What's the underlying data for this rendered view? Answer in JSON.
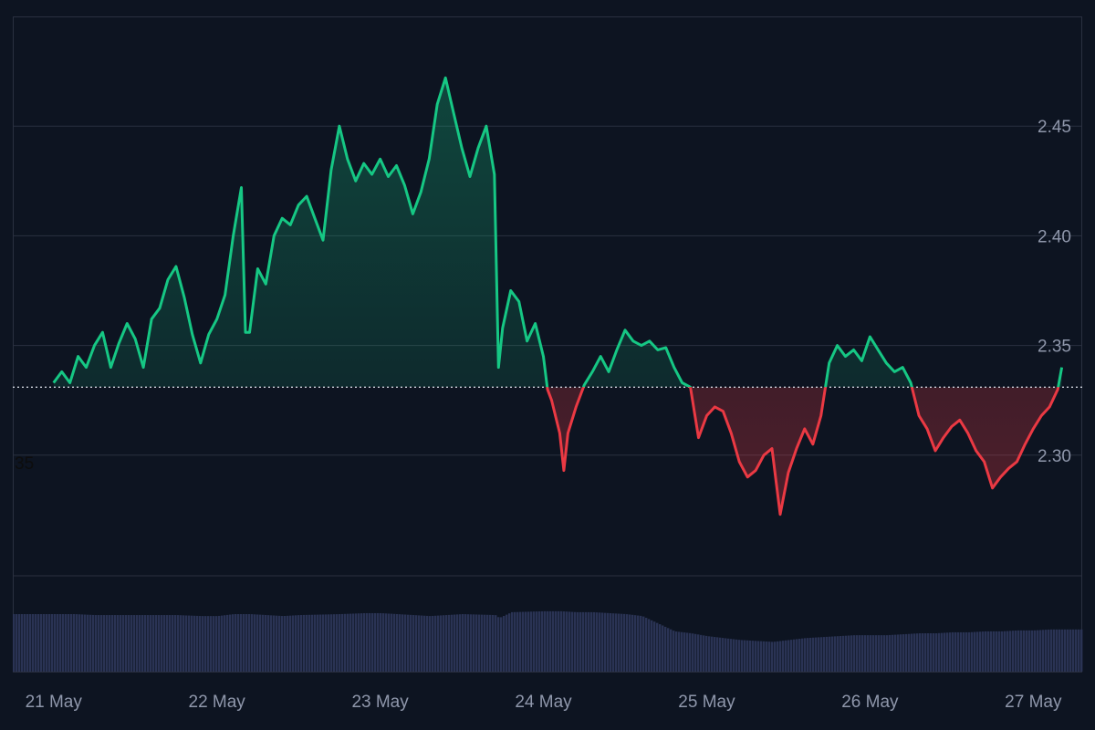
{
  "chart_data": {
    "type": "line",
    "title": "",
    "xlabel": "",
    "ylabel": "",
    "x_tick_labels": [
      "21 May",
      "22 May",
      "23 May",
      "24 May",
      "25 May",
      "26 May",
      "27 May"
    ],
    "y_tick_labels": [
      "2.30",
      "2.35",
      "2.40",
      "2.45"
    ],
    "y_ticks": [
      2.3,
      2.35,
      2.4,
      2.45
    ],
    "ylim": [
      2.245,
      2.5
    ],
    "baseline": 2.331,
    "baseline_label": "35",
    "grid": true,
    "colors": {
      "background": "#0d1421",
      "grid": "#2a3040",
      "above": "#16c784",
      "below": "#ea3943",
      "volume": "#2a3354",
      "baseline": "#cfd3dc"
    },
    "price_series": [
      [
        0.0,
        2.333
      ],
      [
        0.1,
        2.338
      ],
      [
        0.2,
        2.333
      ],
      [
        0.3,
        2.345
      ],
      [
        0.4,
        2.34
      ],
      [
        0.5,
        2.35
      ],
      [
        0.6,
        2.356
      ],
      [
        0.7,
        2.34
      ],
      [
        0.8,
        2.351
      ],
      [
        0.9,
        2.36
      ],
      [
        1.0,
        2.353
      ],
      [
        1.1,
        2.34
      ],
      [
        1.2,
        2.362
      ],
      [
        1.3,
        2.367
      ],
      [
        1.4,
        2.38
      ],
      [
        1.5,
        2.386
      ],
      [
        1.6,
        2.372
      ],
      [
        1.7,
        2.355
      ],
      [
        1.8,
        2.342
      ],
      [
        1.9,
        2.355
      ],
      [
        2.0,
        2.362
      ],
      [
        2.1,
        2.373
      ],
      [
        2.2,
        2.4
      ],
      [
        2.3,
        2.422
      ],
      [
        2.35,
        2.356
      ],
      [
        2.4,
        2.356
      ],
      [
        2.5,
        2.385
      ],
      [
        2.6,
        2.378
      ],
      [
        2.7,
        2.4
      ],
      [
        2.8,
        2.408
      ],
      [
        2.9,
        2.405
      ],
      [
        3.0,
        2.414
      ],
      [
        3.1,
        2.418
      ],
      [
        3.2,
        2.408
      ],
      [
        3.3,
        2.398
      ],
      [
        3.4,
        2.43
      ],
      [
        3.5,
        2.45
      ],
      [
        3.6,
        2.435
      ],
      [
        3.7,
        2.425
      ],
      [
        3.8,
        2.433
      ],
      [
        3.9,
        2.428
      ],
      [
        4.0,
        2.435
      ],
      [
        4.1,
        2.427
      ],
      [
        4.2,
        2.432
      ],
      [
        4.3,
        2.423
      ],
      [
        4.4,
        2.41
      ],
      [
        4.5,
        2.42
      ],
      [
        4.6,
        2.435
      ],
      [
        4.7,
        2.46
      ],
      [
        4.8,
        2.472
      ],
      [
        4.9,
        2.456
      ],
      [
        5.0,
        2.44
      ],
      [
        5.1,
        2.427
      ],
      [
        5.2,
        2.44
      ],
      [
        5.3,
        2.45
      ],
      [
        5.4,
        2.428
      ],
      [
        5.45,
        2.34
      ],
      [
        5.5,
        2.358
      ],
      [
        5.6,
        2.375
      ],
      [
        5.7,
        2.37
      ],
      [
        5.8,
        2.352
      ],
      [
        5.9,
        2.36
      ],
      [
        6.0,
        2.345
      ],
      [
        6.05,
        2.33
      ],
      [
        6.1,
        2.325
      ],
      [
        6.2,
        2.31
      ],
      [
        6.25,
        2.293
      ],
      [
        6.3,
        2.31
      ],
      [
        6.4,
        2.322
      ],
      [
        6.5,
        2.332
      ],
      [
        6.6,
        2.338
      ],
      [
        6.7,
        2.345
      ],
      [
        6.8,
        2.338
      ],
      [
        6.9,
        2.348
      ],
      [
        7.0,
        2.357
      ],
      [
        7.1,
        2.352
      ],
      [
        7.2,
        2.35
      ],
      [
        7.3,
        2.352
      ],
      [
        7.4,
        2.348
      ],
      [
        7.5,
        2.349
      ],
      [
        7.6,
        2.34
      ],
      [
        7.7,
        2.333
      ],
      [
        7.8,
        2.331
      ],
      [
        7.9,
        2.308
      ],
      [
        8.0,
        2.318
      ],
      [
        8.1,
        2.322
      ],
      [
        8.2,
        2.32
      ],
      [
        8.3,
        2.31
      ],
      [
        8.4,
        2.297
      ],
      [
        8.5,
        2.29
      ],
      [
        8.6,
        2.293
      ],
      [
        8.7,
        2.3
      ],
      [
        8.8,
        2.303
      ],
      [
        8.9,
        2.273
      ],
      [
        9.0,
        2.292
      ],
      [
        9.1,
        2.303
      ],
      [
        9.2,
        2.312
      ],
      [
        9.3,
        2.305
      ],
      [
        9.4,
        2.318
      ],
      [
        9.5,
        2.342
      ],
      [
        9.6,
        2.35
      ],
      [
        9.7,
        2.345
      ],
      [
        9.8,
        2.348
      ],
      [
        9.9,
        2.343
      ],
      [
        10.0,
        2.354
      ],
      [
        10.1,
        2.348
      ],
      [
        10.2,
        2.342
      ],
      [
        10.3,
        2.338
      ],
      [
        10.4,
        2.34
      ],
      [
        10.5,
        2.333
      ],
      [
        10.6,
        2.318
      ],
      [
        10.7,
        2.312
      ],
      [
        10.8,
        2.302
      ],
      [
        10.9,
        2.308
      ],
      [
        11.0,
        2.313
      ],
      [
        11.1,
        2.316
      ],
      [
        11.2,
        2.31
      ],
      [
        11.3,
        2.302
      ],
      [
        11.4,
        2.297
      ],
      [
        11.5,
        2.285
      ],
      [
        11.6,
        2.29
      ],
      [
        11.7,
        2.294
      ],
      [
        11.8,
        2.297
      ],
      [
        11.9,
        2.305
      ],
      [
        12.0,
        2.312
      ],
      [
        12.1,
        2.318
      ],
      [
        12.2,
        2.322
      ],
      [
        12.3,
        2.33
      ],
      [
        12.35,
        2.34
      ]
    ],
    "volume_series": [
      [
        0.0,
        0.6
      ],
      [
        0.25,
        0.6
      ],
      [
        0.5,
        0.59
      ],
      [
        1.0,
        0.59
      ],
      [
        1.5,
        0.59
      ],
      [
        1.8,
        0.58
      ],
      [
        2.0,
        0.58
      ],
      [
        2.2,
        0.6
      ],
      [
        2.4,
        0.6
      ],
      [
        2.6,
        0.59
      ],
      [
        2.8,
        0.58
      ],
      [
        3.0,
        0.59
      ],
      [
        3.5,
        0.6
      ],
      [
        3.8,
        0.61
      ],
      [
        4.0,
        0.61
      ],
      [
        4.2,
        0.6
      ],
      [
        4.4,
        0.59
      ],
      [
        4.6,
        0.58
      ],
      [
        5.0,
        0.6
      ],
      [
        5.4,
        0.59
      ],
      [
        5.45,
        0.56
      ],
      [
        5.6,
        0.62
      ],
      [
        6.0,
        0.63
      ],
      [
        6.2,
        0.63
      ],
      [
        6.4,
        0.62
      ],
      [
        6.6,
        0.62
      ],
      [
        6.8,
        0.61
      ],
      [
        7.0,
        0.6
      ],
      [
        7.2,
        0.58
      ],
      [
        7.4,
        0.5
      ],
      [
        7.6,
        0.42
      ],
      [
        7.8,
        0.4
      ],
      [
        8.0,
        0.37
      ],
      [
        8.2,
        0.35
      ],
      [
        8.4,
        0.33
      ],
      [
        8.6,
        0.32
      ],
      [
        8.8,
        0.31
      ],
      [
        9.0,
        0.33
      ],
      [
        9.2,
        0.35
      ],
      [
        9.4,
        0.36
      ],
      [
        9.6,
        0.37
      ],
      [
        9.8,
        0.38
      ],
      [
        10.0,
        0.38
      ],
      [
        10.2,
        0.38
      ],
      [
        10.4,
        0.39
      ],
      [
        10.6,
        0.4
      ],
      [
        10.8,
        0.4
      ],
      [
        11.0,
        0.41
      ],
      [
        11.2,
        0.41
      ],
      [
        11.4,
        0.42
      ],
      [
        11.6,
        0.42
      ],
      [
        11.8,
        0.43
      ],
      [
        12.0,
        0.43
      ],
      [
        12.2,
        0.44
      ],
      [
        12.35,
        0.44
      ]
    ]
  }
}
